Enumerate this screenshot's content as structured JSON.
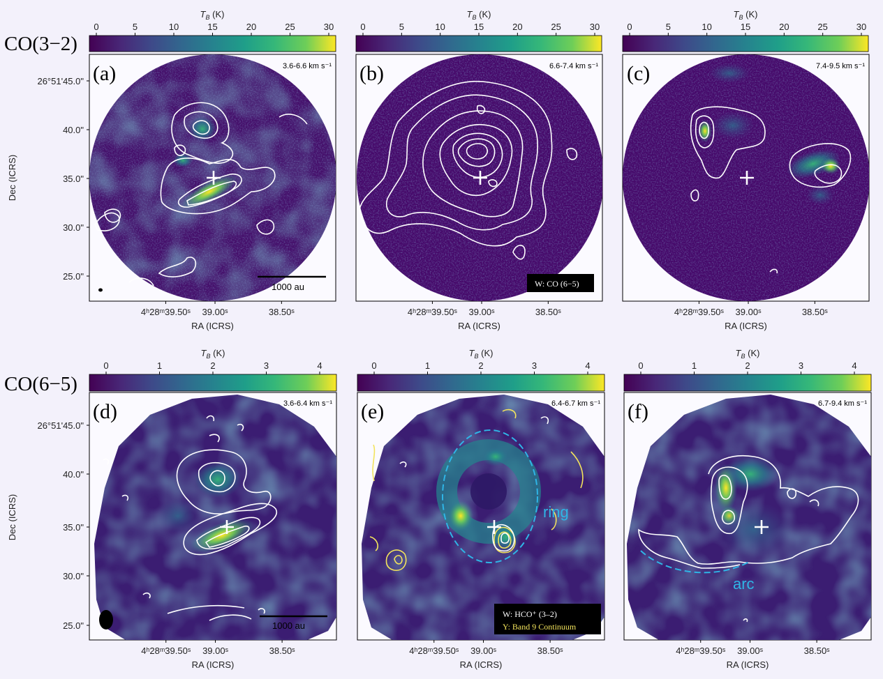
{
  "figure": {
    "rows": [
      {
        "row_label": "CO(3−2)",
        "colorbar": {
          "label": "T_B (K)",
          "ticks": [
            "0",
            "5",
            "10",
            "15",
            "20",
            "25",
            "30"
          ],
          "min": 0,
          "max": 30
        },
        "panels": [
          {
            "id": "a",
            "label": "(a)",
            "velocity": "3.6-6.6 km s⁻¹",
            "scalebar": "1000 au",
            "beam": true
          },
          {
            "id": "b",
            "label": "(b)",
            "velocity": "6.6-7.4 km s⁻¹",
            "legend": [
              "W: CO (6−5)"
            ]
          },
          {
            "id": "c",
            "label": "(c)",
            "velocity": "7.4-9.5 km s⁻¹"
          }
        ]
      },
      {
        "row_label": "CO(6−5)",
        "colorbar": {
          "label": "T_B (K)",
          "ticks": [
            "0",
            "1",
            "2",
            "3",
            "4"
          ],
          "min": 0,
          "max": 4
        },
        "panels": [
          {
            "id": "d",
            "label": "(d)",
            "velocity": "3.6-6.4 km s⁻¹",
            "scalebar": "1000 au",
            "beam": true
          },
          {
            "id": "e",
            "label": "(e)",
            "velocity": "6.4-6.7 km s⁻¹",
            "annotation": "ring",
            "legend": [
              "W: HCO⁺ (3–2)",
              "Y: Band 9 Continuum"
            ]
          },
          {
            "id": "f",
            "label": "(f)",
            "velocity": "6.7-9.4 km s⁻¹",
            "annotation": "arc"
          }
        ]
      }
    ],
    "axes": {
      "xlabel": "RA (ICRS)",
      "ylabel": "Dec (ICRS)",
      "xticks": [
        "4ʰ28ᵐ39.50ˢ",
        "39.00ˢ",
        "38.50ˢ"
      ],
      "yticks": [
        "26°51'45.0\"",
        "40.0\"",
        "35.0\"",
        "30.0\"",
        "25.0\""
      ]
    },
    "colors": {
      "background": "#f3f1fb",
      "map_low": "#440154",
      "map_high": "#fde725",
      "contour_white": "#ffffff",
      "contour_yellow": "#f2e35c",
      "annotation_cyan": "#2fb5e6"
    }
  }
}
